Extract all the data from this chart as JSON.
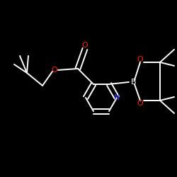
{
  "background_color": "#000000",
  "bond_color": "#ffffff",
  "nitrogen_color": "#3333ff",
  "oxygen_color": "#ff2200",
  "figsize": [
    2.5,
    2.5
  ],
  "dpi": 100,
  "xlim": [
    0,
    250
  ],
  "ylim": [
    0,
    250
  ]
}
